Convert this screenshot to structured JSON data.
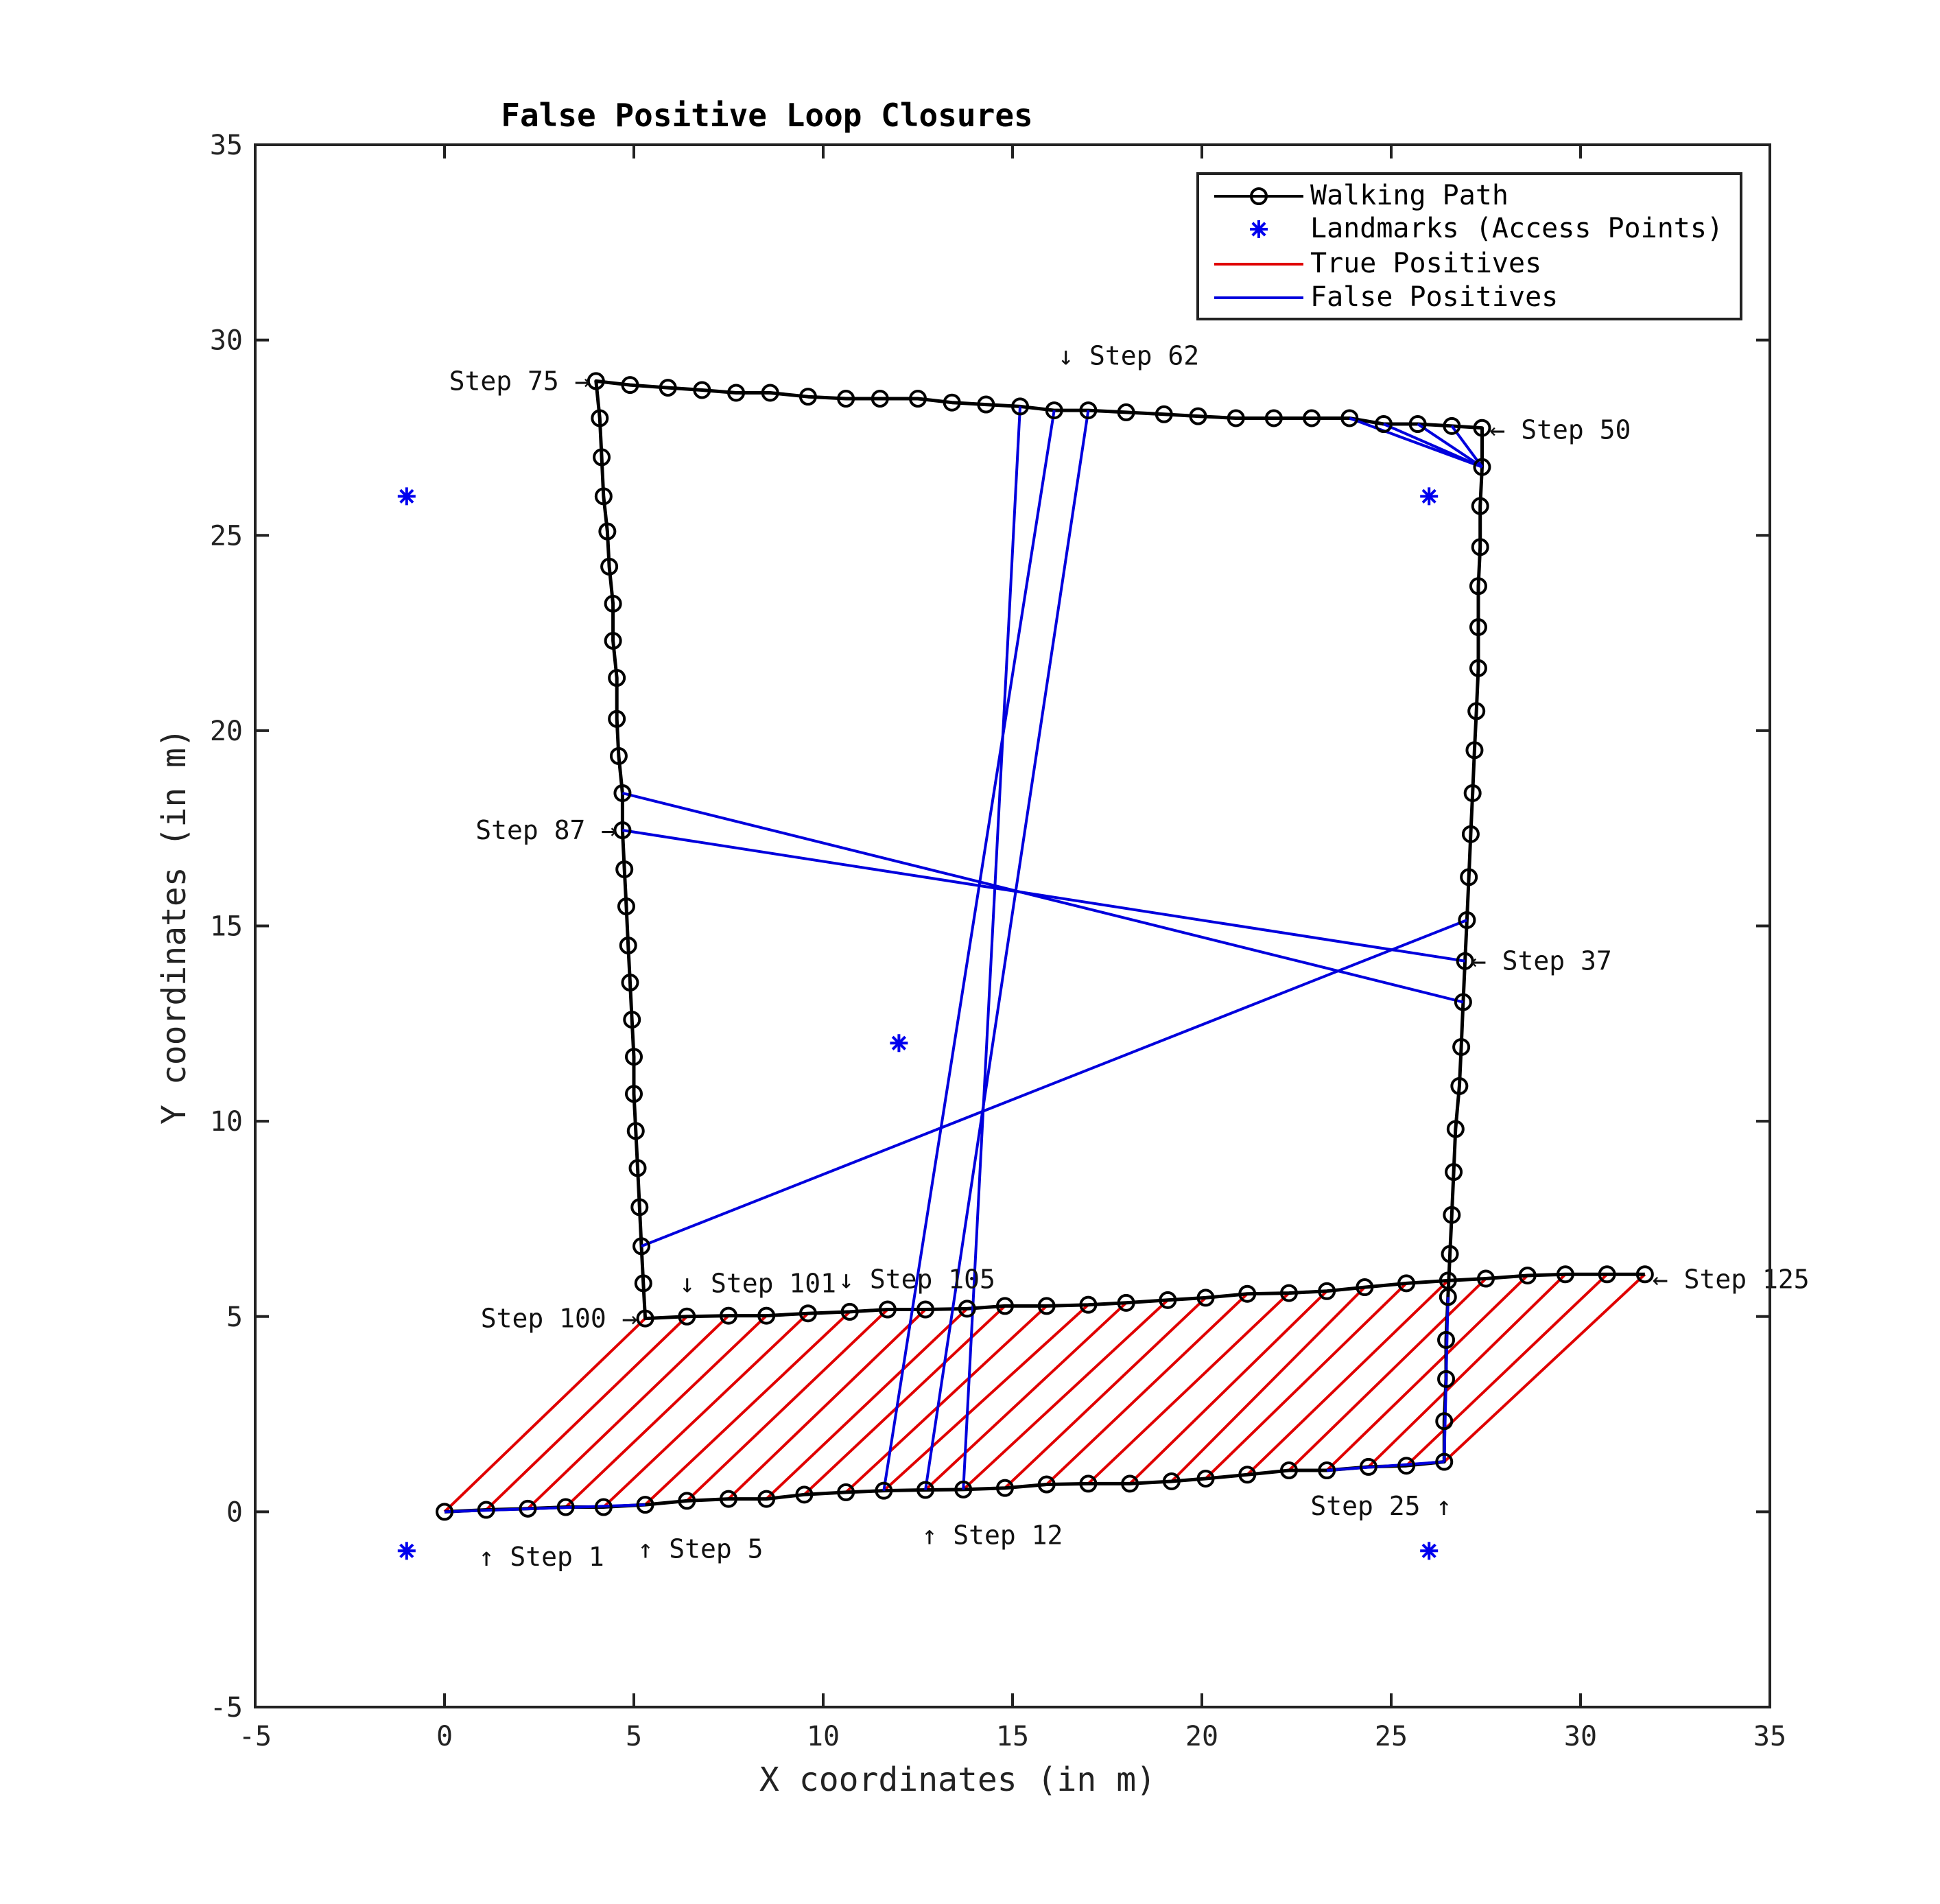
{
  "chart_data": {
    "type": "line",
    "title": "False Positive Loop Closures",
    "xlabel": "X coordinates (in m)",
    "ylabel": "Y coordinates (in m)",
    "xlim": [
      -5,
      35
    ],
    "ylim": [
      -5,
      35
    ],
    "xticks": [
      "-5",
      "0",
      "5",
      "10",
      "15",
      "20",
      "25",
      "30",
      "35"
    ],
    "yticks": [
      "-5",
      "0",
      "5",
      "10",
      "15",
      "20",
      "25",
      "30",
      "35"
    ],
    "grid": false,
    "legend_position": "top-right",
    "legend": [
      {
        "label": "Walking Path",
        "style": "line-circle",
        "color": "#000000"
      },
      {
        "label": "Landmarks (Access Points)",
        "style": "asterisk",
        "color": "#0000ee"
      },
      {
        "label": "True Positives",
        "style": "line",
        "color": "#e00000"
      },
      {
        "label": "False Positives",
        "style": "line",
        "color": "#0000dd"
      }
    ],
    "colors": {
      "path": "#000000",
      "landmark": "#0000ee",
      "true_positive": "#e00000",
      "false_positive": "#0000dd"
    },
    "walking_path": [
      [
        0,
        0
      ],
      [
        1.1,
        0.05
      ],
      [
        2.2,
        0.08
      ],
      [
        3.2,
        0.12
      ],
      [
        4.2,
        0.12
      ],
      [
        5.3,
        0.18
      ],
      [
        6.4,
        0.28
      ],
      [
        7.5,
        0.33
      ],
      [
        8.5,
        0.33
      ],
      [
        9.5,
        0.44
      ],
      [
        10.6,
        0.5
      ],
      [
        11.6,
        0.54
      ],
      [
        12.7,
        0.56
      ],
      [
        13.7,
        0.57
      ],
      [
        14.8,
        0.61
      ],
      [
        15.9,
        0.7
      ],
      [
        17,
        0.72
      ],
      [
        18.1,
        0.72
      ],
      [
        19.2,
        0.78
      ],
      [
        20.1,
        0.85
      ],
      [
        21.2,
        0.95
      ],
      [
        22.3,
        1.06
      ],
      [
        23.3,
        1.06
      ],
      [
        24.4,
        1.15
      ],
      [
        25.4,
        1.18
      ],
      [
        26.4,
        1.28
      ],
      [
        26.4,
        2.32
      ],
      [
        26.45,
        3.4
      ],
      [
        26.45,
        4.4
      ],
      [
        26.5,
        5.5
      ],
      [
        26.55,
        6.6
      ],
      [
        26.6,
        7.6
      ],
      [
        26.65,
        8.7
      ],
      [
        26.7,
        9.8
      ],
      [
        26.8,
        10.9
      ],
      [
        26.85,
        11.9
      ],
      [
        26.9,
        13.05
      ],
      [
        26.95,
        14.1
      ],
      [
        27.0,
        15.15
      ],
      [
        27.05,
        16.25
      ],
      [
        27.1,
        17.35
      ],
      [
        27.15,
        18.4
      ],
      [
        27.2,
        19.5
      ],
      [
        27.25,
        20.5
      ],
      [
        27.3,
        21.6
      ],
      [
        27.3,
        22.65
      ],
      [
        27.3,
        23.7
      ],
      [
        27.35,
        24.7
      ],
      [
        27.35,
        25.75
      ],
      [
        27.4,
        26.75
      ],
      [
        27.4,
        27.75
      ],
      [
        26.6,
        27.8
      ],
      [
        25.7,
        27.85
      ],
      [
        24.8,
        27.85
      ],
      [
        23.9,
        28.0
      ],
      [
        22.9,
        28.0
      ],
      [
        21.9,
        28.0
      ],
      [
        20.9,
        28.0
      ],
      [
        19.9,
        28.05
      ],
      [
        19.0,
        28.1
      ],
      [
        18.0,
        28.15
      ],
      [
        17.0,
        28.2
      ],
      [
        16.1,
        28.2
      ],
      [
        15.2,
        28.3
      ],
      [
        14.3,
        28.35
      ],
      [
        13.4,
        28.4
      ],
      [
        12.5,
        28.5
      ],
      [
        11.5,
        28.5
      ],
      [
        10.6,
        28.5
      ],
      [
        9.6,
        28.55
      ],
      [
        8.6,
        28.65
      ],
      [
        7.7,
        28.65
      ],
      [
        6.8,
        28.72
      ],
      [
        5.9,
        28.78
      ],
      [
        4.9,
        28.85
      ],
      [
        4.0,
        28.95
      ],
      [
        4.1,
        28.0
      ],
      [
        4.15,
        27.0
      ],
      [
        4.2,
        26.0
      ],
      [
        4.3,
        25.1
      ],
      [
        4.35,
        24.2
      ],
      [
        4.45,
        23.25
      ],
      [
        4.45,
        22.3
      ],
      [
        4.55,
        21.35
      ],
      [
        4.55,
        20.3
      ],
      [
        4.6,
        19.35
      ],
      [
        4.7,
        18.4
      ],
      [
        4.7,
        17.45
      ],
      [
        4.75,
        16.45
      ],
      [
        4.8,
        15.5
      ],
      [
        4.85,
        14.5
      ],
      [
        4.9,
        13.55
      ],
      [
        4.95,
        12.6
      ],
      [
        5.0,
        11.65
      ],
      [
        5.0,
        10.7
      ],
      [
        5.05,
        9.75
      ],
      [
        5.1,
        8.8
      ],
      [
        5.15,
        7.8
      ],
      [
        5.2,
        6.8
      ],
      [
        5.25,
        5.85
      ],
      [
        5.3,
        4.95
      ],
      [
        6.4,
        5.0
      ],
      [
        7.5,
        5.02
      ],
      [
        8.5,
        5.02
      ],
      [
        9.6,
        5.08
      ],
      [
        10.7,
        5.12
      ],
      [
        11.7,
        5.18
      ],
      [
        12.7,
        5.18
      ],
      [
        13.8,
        5.2
      ],
      [
        14.8,
        5.27
      ],
      [
        15.9,
        5.27
      ],
      [
        17.0,
        5.3
      ],
      [
        18.0,
        5.35
      ],
      [
        19.1,
        5.42
      ],
      [
        20.1,
        5.48
      ],
      [
        21.2,
        5.58
      ],
      [
        22.3,
        5.6
      ],
      [
        23.3,
        5.65
      ],
      [
        24.3,
        5.75
      ],
      [
        25.4,
        5.85
      ],
      [
        26.5,
        5.92
      ],
      [
        27.5,
        5.97
      ],
      [
        28.6,
        6.05
      ],
      [
        29.6,
        6.08
      ],
      [
        30.7,
        6.08
      ],
      [
        31.7,
        6.08
      ]
    ],
    "landmarks": [
      [
        -1,
        26
      ],
      [
        26,
        26
      ],
      [
        12,
        12
      ],
      [
        -1,
        -1
      ],
      [
        26,
        -1
      ]
    ],
    "true_positives": [
      [
        [
          0,
          0
        ],
        [
          5.3,
          4.95
        ]
      ],
      [
        [
          1.1,
          0.05
        ],
        [
          6.4,
          5.0
        ]
      ],
      [
        [
          2.2,
          0.08
        ],
        [
          7.5,
          5.02
        ]
      ],
      [
        [
          3.2,
          0.12
        ],
        [
          8.5,
          5.02
        ]
      ],
      [
        [
          4.2,
          0.12
        ],
        [
          9.6,
          5.08
        ]
      ],
      [
        [
          5.3,
          0.18
        ],
        [
          10.7,
          5.12
        ]
      ],
      [
        [
          6.4,
          0.28
        ],
        [
          11.7,
          5.18
        ]
      ],
      [
        [
          7.5,
          0.33
        ],
        [
          12.7,
          5.18
        ]
      ],
      [
        [
          8.5,
          0.33
        ],
        [
          13.8,
          5.2
        ]
      ],
      [
        [
          9.5,
          0.44
        ],
        [
          14.8,
          5.27
        ]
      ],
      [
        [
          10.6,
          0.5
        ],
        [
          15.9,
          5.27
        ]
      ],
      [
        [
          11.6,
          0.54
        ],
        [
          17.0,
          5.3
        ]
      ],
      [
        [
          12.7,
          0.56
        ],
        [
          18.0,
          5.35
        ]
      ],
      [
        [
          13.7,
          0.57
        ],
        [
          19.1,
          5.42
        ]
      ],
      [
        [
          14.8,
          0.61
        ],
        [
          20.1,
          5.48
        ]
      ],
      [
        [
          15.9,
          0.7
        ],
        [
          21.2,
          5.58
        ]
      ],
      [
        [
          17,
          0.72
        ],
        [
          22.3,
          5.6
        ]
      ],
      [
        [
          18.1,
          0.72
        ],
        [
          23.3,
          5.65
        ]
      ],
      [
        [
          19.2,
          0.78
        ],
        [
          24.3,
          5.75
        ]
      ],
      [
        [
          20.1,
          0.85
        ],
        [
          25.4,
          5.85
        ]
      ],
      [
        [
          21.2,
          0.95
        ],
        [
          26.5,
          5.92
        ]
      ],
      [
        [
          22.3,
          1.06
        ],
        [
          27.5,
          5.97
        ]
      ],
      [
        [
          23.3,
          1.06
        ],
        [
          28.6,
          6.05
        ]
      ],
      [
        [
          24.4,
          1.15
        ],
        [
          29.6,
          6.08
        ]
      ],
      [
        [
          25.4,
          1.18
        ],
        [
          30.7,
          6.08
        ]
      ],
      [
        [
          26.4,
          1.28
        ],
        [
          31.7,
          6.08
        ]
      ]
    ],
    "false_positives": [
      [
        [
          0,
          0
        ],
        [
          5.3,
          0.18
        ]
      ],
      [
        [
          23.3,
          1.06
        ],
        [
          26.4,
          1.28
        ]
      ],
      [
        [
          26.4,
          1.28
        ],
        [
          26.5,
          5.5
        ]
      ],
      [
        [
          11.6,
          0.54
        ],
        [
          16.1,
          28.2
        ]
      ],
      [
        [
          12.7,
          0.56
        ],
        [
          17.0,
          28.2
        ]
      ],
      [
        [
          13.7,
          0.57
        ],
        [
          15.2,
          28.3
        ]
      ],
      [
        [
          4.7,
          18.4
        ],
        [
          26.9,
          13.05
        ]
      ],
      [
        [
          4.7,
          17.45
        ],
        [
          26.95,
          14.1
        ]
      ],
      [
        [
          5.2,
          6.8
        ],
        [
          27.0,
          15.15
        ]
      ],
      [
        [
          23.9,
          28.0
        ],
        [
          27.4,
          26.75
        ]
      ],
      [
        [
          24.8,
          27.85
        ],
        [
          27.4,
          26.75
        ]
      ],
      [
        [
          25.7,
          27.85
        ],
        [
          27.4,
          26.75
        ]
      ],
      [
        [
          26.6,
          27.8
        ],
        [
          27.4,
          26.75
        ]
      ]
    ],
    "annotations": [
      {
        "text": "Step 75 →",
        "x": 3.85,
        "y": 28.95,
        "anchor": "end"
      },
      {
        "text": "↓ Step 62",
        "x": 16.2,
        "y": 29.6,
        "anchor": "start"
      },
      {
        "text": "← Step 50",
        "x": 27.6,
        "y": 27.7,
        "anchor": "start"
      },
      {
        "text": "Step 87 →",
        "x": 4.55,
        "y": 17.45,
        "anchor": "end"
      },
      {
        "text": "← Step 37",
        "x": 27.1,
        "y": 14.1,
        "anchor": "start"
      },
      {
        "text": "↓ Step 101",
        "x": 6.2,
        "y": 5.85,
        "anchor": "start"
      },
      {
        "text": "↓ Step 105",
        "x": 10.4,
        "y": 5.95,
        "anchor": "start"
      },
      {
        "text": "← Step 125",
        "x": 31.9,
        "y": 5.95,
        "anchor": "start"
      },
      {
        "text": "Step 100 →",
        "x": 5.1,
        "y": 4.95,
        "anchor": "end"
      },
      {
        "text": "Step 25 ↑",
        "x": 26.6,
        "y": 0.15,
        "anchor": "end"
      },
      {
        "text": "↑ Step 12",
        "x": 12.6,
        "y": -0.6,
        "anchor": "start"
      },
      {
        "text": "↑ Step 1",
        "x": 0.9,
        "y": -1.15,
        "anchor": "start"
      },
      {
        "text": "↑ Step 5",
        "x": 5.1,
        "y": -0.95,
        "anchor": "start"
      }
    ]
  }
}
